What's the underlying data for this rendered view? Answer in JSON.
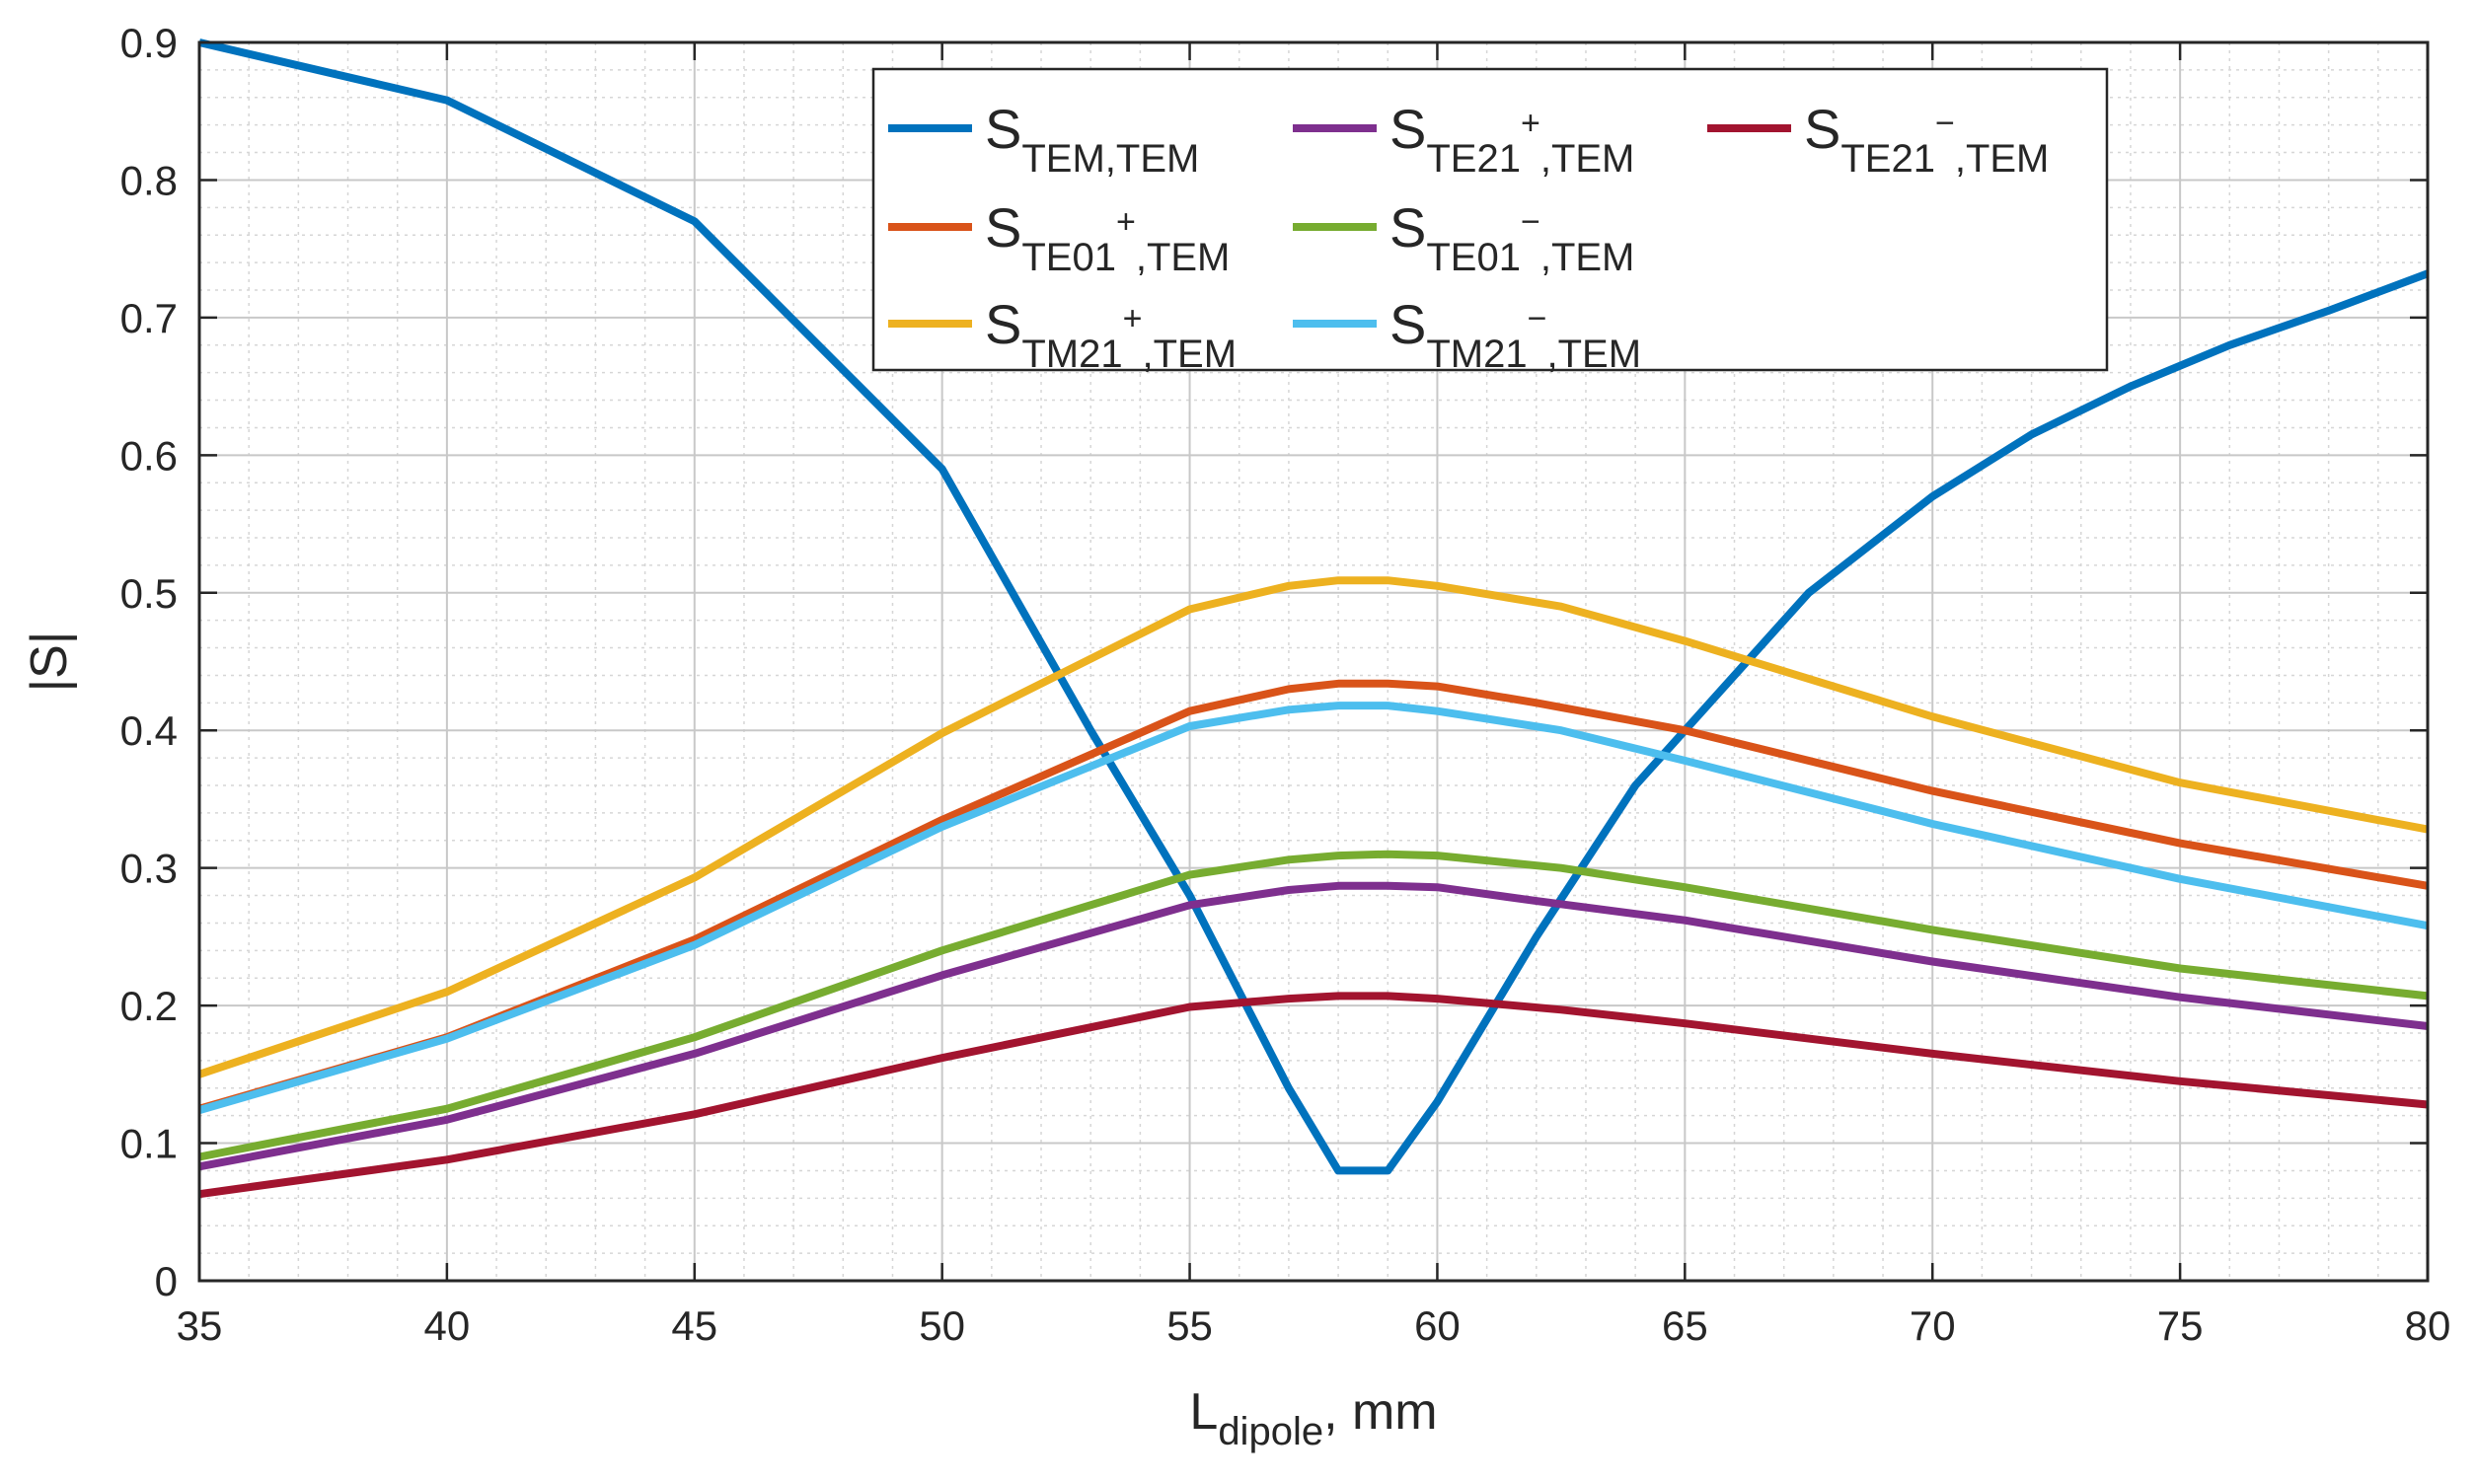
{
  "chart_data": {
    "type": "line",
    "title": "",
    "xlabel": {
      "main": "L",
      "sub": "dipole",
      "suffix": ", mm"
    },
    "ylabel": "|S|",
    "xlim": [
      35,
      80
    ],
    "ylim": [
      0,
      0.9
    ],
    "grid": true,
    "minor_grid": true,
    "legend_position": "top-center",
    "xticks": [
      "35",
      "40",
      "45",
      "50",
      "55",
      "60",
      "65",
      "70",
      "75",
      "80"
    ],
    "yticks": [
      "0",
      "0.1",
      "0.2",
      "0.3",
      "0.4",
      "0.5",
      "0.6",
      "0.7",
      "0.8",
      "0.9"
    ],
    "series": [
      {
        "name": "S_TEM,TEM",
        "sub_a": "TEM,TEM",
        "sup": "",
        "sub_b": "",
        "color": "#0072BD",
        "x": [
          35,
          40,
          45,
          50,
          53,
          55,
          57,
          58,
          59,
          60,
          62,
          64,
          67.5,
          70,
          72,
          74,
          76,
          78,
          80
        ],
        "y": [
          0.9,
          0.858,
          0.77,
          0.59,
          0.4,
          0.28,
          0.14,
          0.08,
          0.08,
          0.13,
          0.25,
          0.36,
          0.5,
          0.57,
          0.615,
          0.65,
          0.68,
          0.705,
          0.732
        ]
      },
      {
        "name": "S_TE21+,TEM",
        "sub_a": "TE21",
        "sup": "+",
        "sub_b": ",TEM",
        "color": "#7E2F8E",
        "x": [
          35,
          40,
          45,
          50,
          55,
          57,
          58,
          59,
          60,
          62,
          65,
          70,
          75,
          80
        ],
        "y": [
          0.083,
          0.117,
          0.165,
          0.222,
          0.273,
          0.284,
          0.287,
          0.287,
          0.286,
          0.276,
          0.262,
          0.232,
          0.206,
          0.185
        ]
      },
      {
        "name": "S_TE21-,TEM",
        "sub_a": "TE21",
        "sup": "−",
        "sub_b": ",TEM",
        "color": "#A2142F",
        "x": [
          35,
          40,
          45,
          50,
          55,
          57,
          58,
          59,
          60,
          62.5,
          65,
          70,
          75,
          80
        ],
        "y": [
          0.063,
          0.088,
          0.121,
          0.162,
          0.199,
          0.205,
          0.207,
          0.207,
          0.205,
          0.197,
          0.187,
          0.165,
          0.145,
          0.128
        ]
      },
      {
        "name": "S_TE01+,TEM",
        "sub_a": "TE01",
        "sup": "+",
        "sub_b": ",TEM",
        "color": "#D95319",
        "x": [
          35,
          40,
          45,
          50,
          55,
          57,
          58,
          59,
          60,
          62,
          65,
          70,
          75,
          80
        ],
        "y": [
          0.125,
          0.177,
          0.248,
          0.335,
          0.414,
          0.43,
          0.434,
          0.434,
          0.432,
          0.42,
          0.4,
          0.356,
          0.318,
          0.287
        ]
      },
      {
        "name": "S_TE01-,TEM",
        "sub_a": "TE01",
        "sup": "−",
        "sub_b": ",TEM",
        "color": "#77AC30",
        "x": [
          35,
          40,
          45,
          50,
          55,
          57,
          58,
          59,
          60,
          62.5,
          65,
          70,
          75,
          80
        ],
        "y": [
          0.09,
          0.125,
          0.177,
          0.24,
          0.295,
          0.306,
          0.309,
          0.31,
          0.309,
          0.3,
          0.286,
          0.255,
          0.227,
          0.207
        ]
      },
      {
        "name": "S_TM21+,TEM",
        "sub_a": "TM21",
        "sup": "+",
        "sub_b": ",TEM",
        "color": "#EDB120",
        "x": [
          35,
          40,
          45,
          50,
          55,
          57,
          58,
          59,
          60,
          62.5,
          65,
          70,
          75,
          80
        ],
        "y": [
          0.15,
          0.21,
          0.293,
          0.398,
          0.488,
          0.505,
          0.509,
          0.509,
          0.505,
          0.49,
          0.465,
          0.41,
          0.362,
          0.328
        ]
      },
      {
        "name": "S_TM21-,TEM",
        "sub_a": "TM21",
        "sup": "−",
        "sub_b": ",TEM",
        "color": "#4DBEEE",
        "x": [
          35,
          40,
          45,
          50,
          55,
          57,
          58,
          59,
          60,
          62.5,
          65,
          70,
          75,
          80
        ],
        "y": [
          0.124,
          0.176,
          0.244,
          0.33,
          0.403,
          0.415,
          0.418,
          0.418,
          0.414,
          0.4,
          0.378,
          0.332,
          0.292,
          0.258
        ]
      }
    ]
  }
}
